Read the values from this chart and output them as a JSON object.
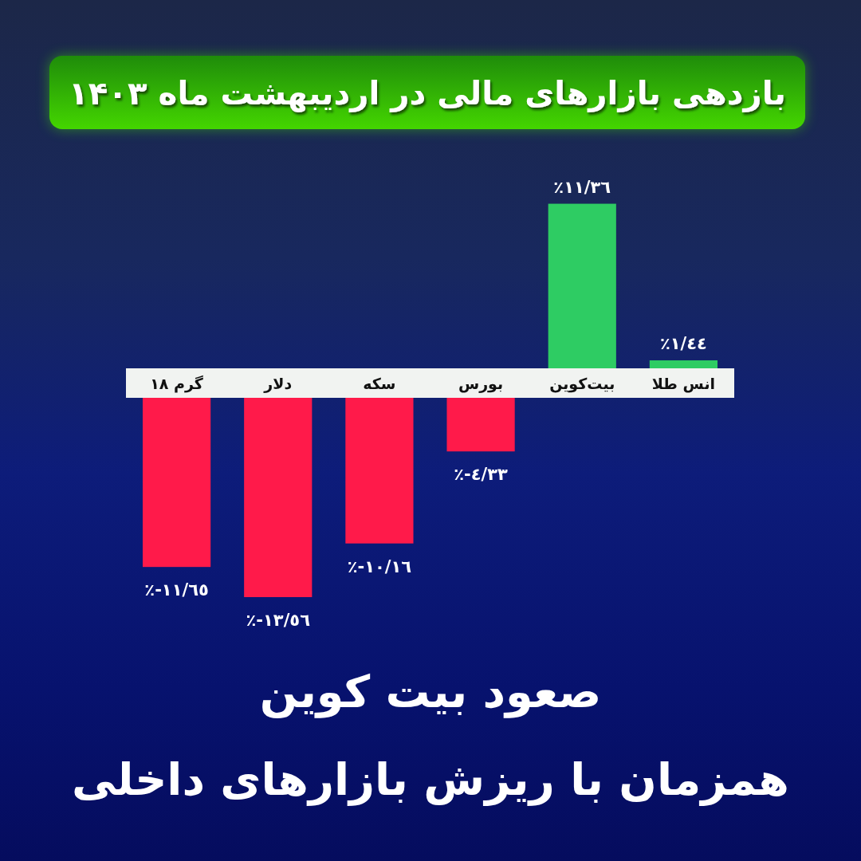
{
  "chart_data": {
    "type": "bar",
    "title": "بازدهی بازارهای مالی در اردیبهشت ماه ۱۴۰۳",
    "categories": [
      "گرم ۱۸",
      "دلار",
      "سکه",
      "بورس",
      "بیت‌کوین",
      "انس طلا"
    ],
    "values": [
      -11.65,
      -13.56,
      -10.16,
      -4.33,
      11.36,
      1.44
    ],
    "colors": [
      "#ff1a4a",
      "#ff1a4a",
      "#ff1a4a",
      "#ff1a4a",
      "#2ecc63",
      "#2ecc63"
    ],
    "value_labels": [
      "٪-١١/٦٥",
      "٪-١٣/٥٦",
      "٪-١٠/١٦",
      "٪-٤/٣٣",
      "٪١١/٣٦",
      "٪١/٤٤"
    ],
    "annotations": [
      "صعود بیت کوین",
      "همزمان با ریزش بازارهای داخلی"
    ]
  }
}
